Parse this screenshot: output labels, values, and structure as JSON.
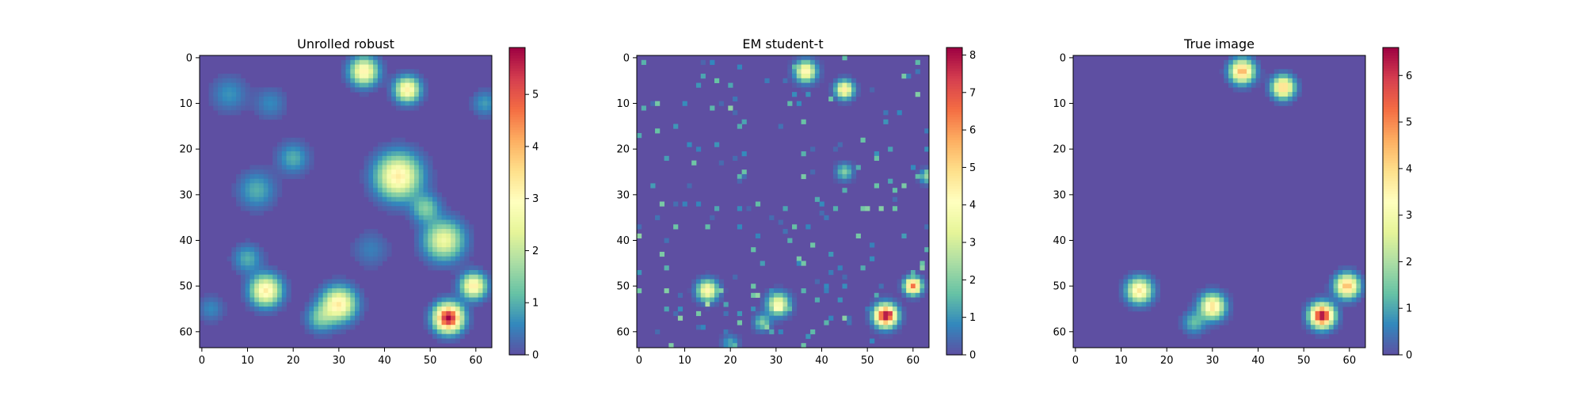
{
  "chart_data": [
    {
      "type": "heatmap",
      "title": "Unrolled robust",
      "xlim": [
        0,
        63
      ],
      "ylim": [
        63,
        0
      ],
      "x_ticks": [
        0,
        10,
        20,
        30,
        40,
        50,
        60
      ],
      "y_ticks": [
        0,
        10,
        20,
        30,
        40,
        50,
        60
      ],
      "colorbar": {
        "min": 0,
        "max": 5.9,
        "ticks": [
          0,
          1,
          2,
          3,
          4,
          5
        ]
      },
      "colormap": "Spectral_r",
      "background_value": 0.0,
      "blobs": [
        {
          "x": 35.5,
          "y": 3,
          "amp": 3.2,
          "sigma": 2.0
        },
        {
          "x": 45,
          "y": 7,
          "amp": 3.2,
          "sigma": 1.8
        },
        {
          "x": 43,
          "y": 26,
          "amp": 3.3,
          "sigma": 3.2
        },
        {
          "x": 53,
          "y": 40,
          "amp": 2.6,
          "sigma": 2.8
        },
        {
          "x": 49,
          "y": 33,
          "amp": 1.4,
          "sigma": 2.0
        },
        {
          "x": 20,
          "y": 22,
          "amp": 1.0,
          "sigma": 2.2
        },
        {
          "x": 12,
          "y": 29,
          "amp": 1.0,
          "sigma": 2.6
        },
        {
          "x": 14,
          "y": 51,
          "amp": 3.3,
          "sigma": 2.2
        },
        {
          "x": 30,
          "y": 54,
          "amp": 3.3,
          "sigma": 2.4
        },
        {
          "x": 26,
          "y": 57,
          "amp": 1.3,
          "sigma": 2.0
        },
        {
          "x": 54,
          "y": 57,
          "amp": 5.9,
          "sigma": 2.0
        },
        {
          "x": 59.5,
          "y": 50,
          "amp": 3.3,
          "sigma": 1.8
        },
        {
          "x": 10,
          "y": 44,
          "amp": 1.0,
          "sigma": 2.0
        },
        {
          "x": 6,
          "y": 8,
          "amp": 0.7,
          "sigma": 2.5
        },
        {
          "x": 62,
          "y": 10,
          "amp": 0.8,
          "sigma": 1.8
        },
        {
          "x": 15,
          "y": 10,
          "amp": 0.6,
          "sigma": 2.2
        },
        {
          "x": 37,
          "y": 42,
          "amp": 0.5,
          "sigma": 2.5
        },
        {
          "x": 2,
          "y": 55,
          "amp": 0.6,
          "sigma": 1.8
        }
      ]
    },
    {
      "type": "heatmap",
      "title": "EM student-t",
      "xlim": [
        0,
        63
      ],
      "ylim": [
        63,
        0
      ],
      "x_ticks": [
        0,
        10,
        20,
        30,
        40,
        50,
        60
      ],
      "y_ticks": [
        0,
        10,
        20,
        30,
        40,
        50,
        60
      ],
      "colorbar": {
        "min": 0,
        "max": 8.2,
        "ticks": [
          0,
          1,
          2,
          3,
          4,
          5,
          6,
          7,
          8
        ]
      },
      "colormap": "Spectral_r",
      "background_value": 0.0,
      "blobs": [
        {
          "x": 36.5,
          "y": 3,
          "amp": 4.5,
          "sigma": 1.5
        },
        {
          "x": 45,
          "y": 7,
          "amp": 4.5,
          "sigma": 1.3
        },
        {
          "x": 15,
          "y": 51,
          "amp": 4.3,
          "sigma": 1.5
        },
        {
          "x": 30.5,
          "y": 54,
          "amp": 4.0,
          "sigma": 1.6
        },
        {
          "x": 27,
          "y": 58,
          "amp": 2.0,
          "sigma": 1.2
        },
        {
          "x": 54,
          "y": 56.5,
          "amp": 8.2,
          "sigma": 1.6
        },
        {
          "x": 60,
          "y": 50,
          "amp": 6.5,
          "sigma": 1.2
        },
        {
          "x": 45,
          "y": 25,
          "amp": 2.0,
          "sigma": 1.2
        },
        {
          "x": 63,
          "y": 26,
          "amp": 2.2,
          "sigma": 1.0
        },
        {
          "x": 20,
          "y": 62.5,
          "amp": 1.3,
          "sigma": 1.2
        }
      ],
      "speckle": true
    },
    {
      "type": "heatmap",
      "title": "True image",
      "xlim": [
        0,
        63
      ],
      "ylim": [
        63,
        0
      ],
      "x_ticks": [
        0,
        10,
        20,
        30,
        40,
        50,
        60
      ],
      "y_ticks": [
        0,
        10,
        20,
        30,
        40,
        50,
        60
      ],
      "colorbar": {
        "min": 0,
        "max": 6.6,
        "ticks": [
          0,
          1,
          2,
          3,
          4,
          5,
          6
        ]
      },
      "colormap": "Spectral_r",
      "background_value": 0.0,
      "blobs": [
        {
          "x": 36.5,
          "y": 3,
          "amp": 4.6,
          "sigma": 1.7
        },
        {
          "x": 45.5,
          "y": 6.5,
          "amp": 4.2,
          "sigma": 1.6
        },
        {
          "x": 14,
          "y": 51,
          "amp": 3.8,
          "sigma": 1.8
        },
        {
          "x": 30,
          "y": 54.5,
          "amp": 3.9,
          "sigma": 1.8
        },
        {
          "x": 26,
          "y": 58,
          "amp": 1.3,
          "sigma": 1.6
        },
        {
          "x": 54,
          "y": 56.5,
          "amp": 6.6,
          "sigma": 1.7
        },
        {
          "x": 59.5,
          "y": 50,
          "amp": 4.5,
          "sigma": 1.7
        }
      ]
    }
  ]
}
